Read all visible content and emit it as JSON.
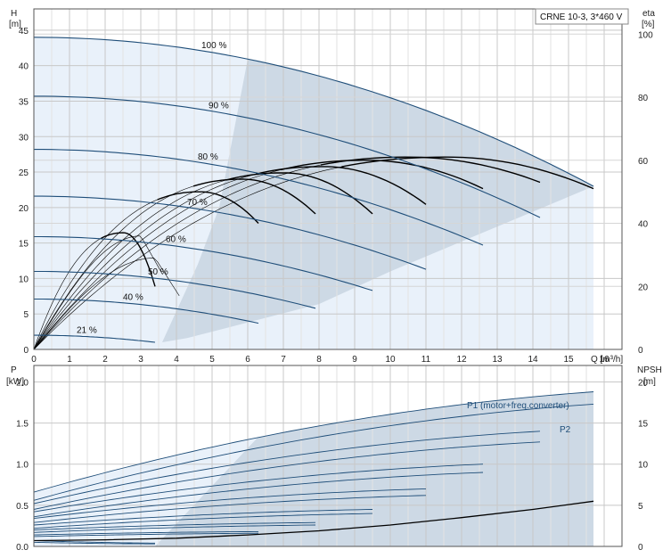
{
  "chart_data": [
    {
      "type": "line",
      "legend_title": "CRNE 10-3, 3*460 V",
      "xlabel": "Q [m³/h]",
      "ylabel": "H",
      "ylabel_unit": "[m]",
      "y2label": "eta",
      "y2label_unit": "[%]",
      "xlim": [
        0,
        16.5
      ],
      "ylim": [
        0,
        48
      ],
      "y2lim": [
        0,
        108
      ],
      "xticks": [
        0,
        1,
        2,
        3,
        4,
        5,
        6,
        7,
        8,
        9,
        10,
        11,
        12,
        13,
        14,
        15,
        16
      ],
      "yticks": [
        0,
        5,
        10,
        15,
        20,
        25,
        30,
        35,
        40,
        45
      ],
      "y2ticks": [
        0,
        20,
        40,
        60,
        80,
        100
      ],
      "grid": true,
      "colors": {
        "head_curve": "#1f4e79",
        "eff_curve": "#000000",
        "region_light": "#e9f1fa",
        "region_dark": "#cdd9e5",
        "grid": "#c8c8c8"
      },
      "head_curves": [
        {
          "name": "100 %",
          "shutoff": 44,
          "x_end": 15.7,
          "y_end": 23.0
        },
        {
          "name": "90 %",
          "shutoff": 35.7,
          "x_end": 14.2,
          "y_end": 18.6
        },
        {
          "name": "80 %",
          "shutoff": 28.2,
          "x_end": 12.6,
          "y_end": 14.7
        },
        {
          "name": "70 %",
          "shutoff": 21.6,
          "x_end": 11.0,
          "y_end": 11.3
        },
        {
          "name": "60 %",
          "shutoff": 15.9,
          "x_end": 9.5,
          "y_end": 8.3
        },
        {
          "name": "50 %",
          "shutoff": 11.0,
          "x_end": 7.9,
          "y_end": 5.8
        },
        {
          "name": "40 %",
          "shutoff": 7.1,
          "x_end": 6.3,
          "y_end": 3.7
        },
        {
          "name": "21 %",
          "shutoff": 2.0,
          "x_end": 3.4,
          "y_end": 1.0
        }
      ],
      "efficiency_curves_pct": [
        {
          "peak": 61,
          "x_end": 15.7,
          "y_end": 51
        },
        {
          "peak": 61,
          "x_end": 14.2,
          "y_end": 53
        },
        {
          "peak": 60,
          "x_end": 12.6,
          "y_end": 51
        },
        {
          "peak": 58,
          "x_end": 11.0,
          "y_end": 46
        },
        {
          "peak": 56,
          "x_end": 9.5,
          "y_end": 43
        },
        {
          "peak": 54,
          "x_end": 7.9,
          "y_end": 43
        },
        {
          "peak": 50,
          "x_end": 6.3,
          "y_end": 40
        },
        {
          "peak": 37,
          "x_end": 3.4,
          "y_end": 20
        }
      ]
    },
    {
      "type": "line",
      "ylabel": "P",
      "ylabel_unit": "[kW]",
      "y2label": "NPSH",
      "y2label_unit": "[m]",
      "xlim": [
        0,
        16.5
      ],
      "ylim": [
        0,
        2.2
      ],
      "y2lim": [
        0,
        22
      ],
      "yticks": [
        0.0,
        0.5,
        1.0,
        1.5,
        2.0
      ],
      "ytick_labels": [
        "0.0",
        "0.5",
        "1.0",
        "1.5",
        "2.0"
      ],
      "y2ticks": [
        0,
        5,
        10,
        15,
        20
      ],
      "grid": true,
      "series_labels": [
        "P1 (motor+freq.converter)",
        "P2"
      ],
      "p1_curves_kw": [
        {
          "start": 0.66,
          "x_end": 15.7,
          "y_end": 1.88
        },
        {
          "start": 0.52,
          "x_end": 14.2,
          "y_end": 1.4
        },
        {
          "start": 0.42,
          "x_end": 12.6,
          "y_end": 1.0
        },
        {
          "start": 0.34,
          "x_end": 11.0,
          "y_end": 0.7
        },
        {
          "start": 0.26,
          "x_end": 9.5,
          "y_end": 0.45
        },
        {
          "start": 0.2,
          "x_end": 7.9,
          "y_end": 0.29
        },
        {
          "start": 0.14,
          "x_end": 6.3,
          "y_end": 0.18
        },
        {
          "start": 0.07,
          "x_end": 3.4,
          "y_end": 0.04
        }
      ],
      "p2_curves_kw": [
        {
          "start": 0.56,
          "x_end": 15.7,
          "y_end": 1.73
        },
        {
          "start": 0.45,
          "x_end": 14.2,
          "y_end": 1.27
        },
        {
          "start": 0.36,
          "x_end": 12.6,
          "y_end": 0.9
        },
        {
          "start": 0.29,
          "x_end": 11.0,
          "y_end": 0.62
        },
        {
          "start": 0.22,
          "x_end": 9.5,
          "y_end": 0.4
        },
        {
          "start": 0.17,
          "x_end": 7.9,
          "y_end": 0.26
        },
        {
          "start": 0.12,
          "x_end": 6.3,
          "y_end": 0.16
        },
        {
          "start": 0.05,
          "x_end": 3.4,
          "y_end": 0.03
        }
      ],
      "npsh_m": {
        "x": [
          0,
          2,
          4,
          6,
          8,
          10,
          12,
          14,
          15.7
        ],
        "y": [
          0.7,
          0.8,
          1.0,
          1.4,
          1.9,
          2.6,
          3.5,
          4.5,
          5.5
        ]
      }
    }
  ]
}
